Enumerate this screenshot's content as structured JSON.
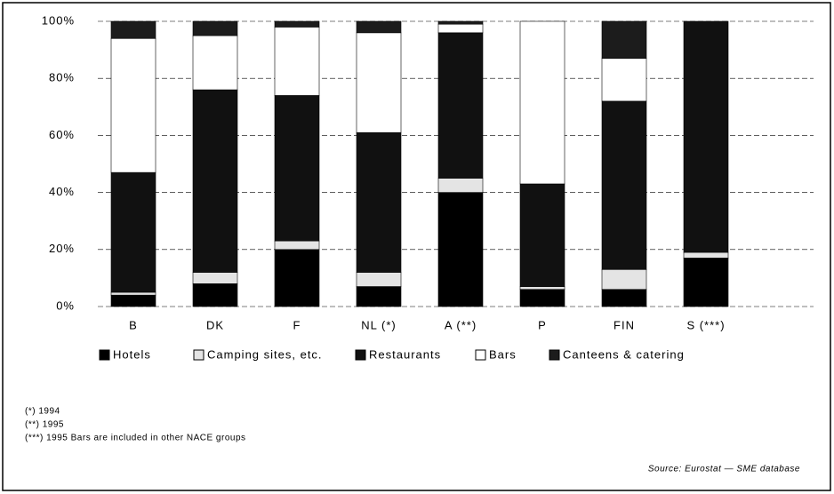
{
  "chart_data": {
    "type": "stacked_bar",
    "categories": [
      "B",
      "DK",
      "F",
      "NL (*)",
      "A (**)",
      "P",
      "FIN",
      "S (***)"
    ],
    "series": [
      {
        "name": "Hotels",
        "color": "#000000",
        "values": [
          4,
          8,
          20,
          7,
          40,
          6,
          6,
          17
        ]
      },
      {
        "name": "Camping sites, etc.",
        "color": "#e4e4e4",
        "values": [
          1,
          4,
          3,
          5,
          5,
          1,
          7,
          2
        ]
      },
      {
        "name": "Restaurants",
        "color": "#111111",
        "values": [
          42,
          64,
          51,
          49,
          51,
          36,
          59,
          81
        ]
      },
      {
        "name": "Bars",
        "color": "#ffffff",
        "values": [
          47,
          19,
          24,
          35,
          3,
          57,
          15,
          0
        ]
      },
      {
        "name": "Canteens & catering",
        "color": "#1c1c1c",
        "values": [
          6,
          5,
          2,
          4,
          1,
          0,
          13,
          0
        ]
      }
    ],
    "ylim": [
      0,
      100
    ],
    "yticks": [
      {
        "value": 0,
        "label": "0%"
      },
      {
        "value": 20,
        "label": "20%"
      },
      {
        "value": 40,
        "label": "40%"
      },
      {
        "value": 60,
        "label": "60%"
      },
      {
        "value": 80,
        "label": "80%"
      },
      {
        "value": 100,
        "label": "100%"
      }
    ],
    "grid": true,
    "notes": [
      "(*)  1994",
      "(**)  1995",
      "(***) 1995  Bars are included in other NACE groups"
    ],
    "source": "Source: Eurostat — SME database"
  }
}
